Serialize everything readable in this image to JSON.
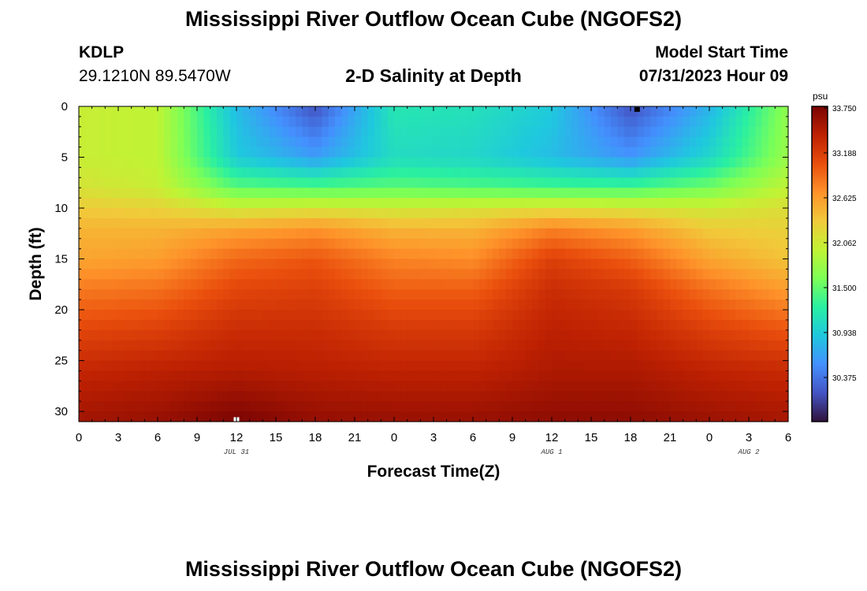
{
  "header": {
    "title": "Mississippi River Outflow Ocean Cube (NGOFS2)",
    "station_id": "KDLP",
    "station_coords": "29.1210N  89.5470W",
    "subtitle": "2-D Salinity at Depth",
    "model_start_label": "Model Start Time",
    "model_start_value": "07/31/2023 Hour 09"
  },
  "footer": {
    "title": "Mississippi River Outflow Ocean Cube (NGOFS2)"
  },
  "chart_data": {
    "type": "heatmap",
    "variable": "salinity",
    "xlabel": "Forecast Time(Z)",
    "ylabel": "Depth (ft)",
    "x_range": [
      0,
      54
    ],
    "y_range": [
      0,
      31
    ],
    "y_inverted": true,
    "x_tick_labels": [
      "0",
      "3",
      "6",
      "9",
      "12",
      "15",
      "18",
      "21",
      "0",
      "3",
      "6",
      "9",
      "12",
      "15",
      "18",
      "21",
      "0",
      "3",
      "6"
    ],
    "y_tick_labels": [
      "0",
      "5",
      "10",
      "15",
      "20",
      "25",
      "30"
    ],
    "date_labels": [
      {
        "label": "JUL 31",
        "hour": 12
      },
      {
        "label": "AUG 1",
        "hour": 36
      },
      {
        "label": "AUG 2",
        "hour": 51
      }
    ],
    "colorbar": {
      "unit": "psu",
      "min": 29.8,
      "max": 33.75,
      "tick_labels": [
        "33.750",
        "33.188",
        "32.625",
        "32.062",
        "31.500",
        "30.938",
        "30.375"
      ],
      "colors": [
        "#30123b",
        "#4454c4",
        "#4490fe",
        "#1fc8de",
        "#29efa2",
        "#7dff56",
        "#c1f334",
        "#f1ca3a",
        "#fe922a",
        "#ea4f0d",
        "#be2102",
        "#7a0403"
      ]
    },
    "hours": [
      0,
      6,
      12,
      18,
      24,
      30,
      36,
      42,
      48,
      54
    ],
    "depths": [
      0,
      5,
      8,
      10,
      12,
      15,
      18,
      22,
      26,
      31
    ],
    "salinity": [
      [
        32.0,
        31.95,
        30.8,
        30.15,
        31.15,
        31.1,
        30.9,
        30.15,
        30.75,
        31.7
      ],
      [
        32.0,
        31.95,
        30.9,
        30.6,
        31.05,
        31.0,
        30.8,
        30.55,
        31.0,
        31.75
      ],
      [
        32.1,
        32.0,
        31.45,
        31.4,
        31.45,
        31.4,
        31.35,
        31.35,
        31.55,
        31.95
      ],
      [
        32.3,
        32.25,
        32.05,
        32.1,
        32.05,
        32.1,
        32.15,
        32.1,
        32.05,
        32.15
      ],
      [
        32.45,
        32.45,
        32.55,
        32.65,
        32.45,
        32.45,
        32.75,
        32.6,
        32.3,
        32.25
      ],
      [
        32.55,
        32.6,
        32.9,
        33.0,
        32.75,
        32.7,
        33.15,
        32.95,
        32.55,
        32.35
      ],
      [
        32.8,
        32.85,
        33.1,
        33.15,
        32.95,
        32.95,
        33.3,
        33.2,
        32.85,
        32.6
      ],
      [
        33.1,
        33.15,
        33.3,
        33.3,
        33.2,
        33.2,
        33.4,
        33.35,
        33.15,
        33.0
      ],
      [
        33.35,
        33.4,
        33.45,
        33.42,
        33.38,
        33.38,
        33.48,
        33.48,
        33.38,
        33.32
      ],
      [
        33.55,
        33.6,
        33.75,
        33.62,
        33.6,
        33.6,
        33.65,
        33.65,
        33.58,
        33.52
      ]
    ],
    "markers": [
      {
        "name": "max-marker",
        "hour": 12,
        "depth": 30.8,
        "color": "#ffffff"
      },
      {
        "name": "min-marker",
        "hour": 42.5,
        "depth": 0.3,
        "color": "#000000"
      }
    ]
  }
}
